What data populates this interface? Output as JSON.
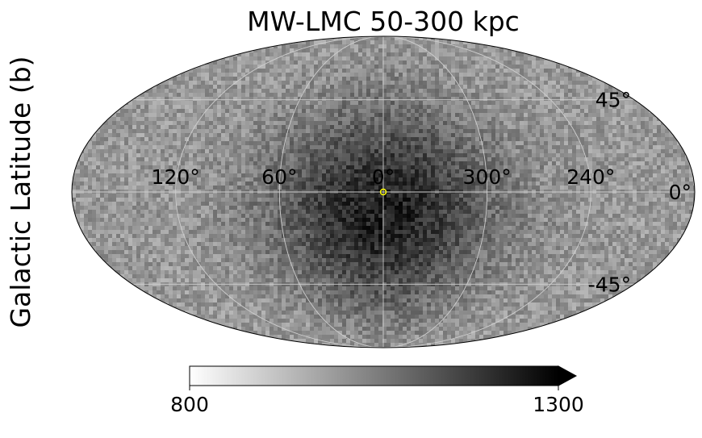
{
  "chart_data": {
    "type": "heatmap",
    "projection": "mollweide",
    "title": "MW-LMC 50-300 kpc",
    "xlabel": "",
    "ylabel": "Galactic Latitude (b)",
    "lon_ticks": [
      {
        "lon": 120,
        "label": "120°"
      },
      {
        "lon": 60,
        "label": "60°"
      },
      {
        "lon": 0,
        "label": "0°"
      },
      {
        "lon": 300,
        "label": "300°"
      },
      {
        "lon": 240,
        "label": "240°"
      }
    ],
    "lat_ticks": [
      {
        "lat": 45,
        "label": "45°"
      },
      {
        "lat": 0,
        "label": "0°"
      },
      {
        "lat": -45,
        "label": "-45°"
      }
    ],
    "grid": true,
    "colormap": "gray_r",
    "colorbar": {
      "min": 800,
      "max": 1300,
      "min_label": "800",
      "max_label": "1300",
      "extend": "max",
      "orientation": "horizontal",
      "placement": "bottom"
    },
    "field": {
      "background": 1000,
      "peak": 1240,
      "peak_center": {
        "lon": 0,
        "lat": -10
      },
      "peak_width_deg": {
        "lon": 45,
        "lat": 35
      },
      "noise_amplitude": 60
    },
    "marker": {
      "lon": 0,
      "lat": 0,
      "shape": "circle",
      "color": "#ffff00"
    }
  }
}
